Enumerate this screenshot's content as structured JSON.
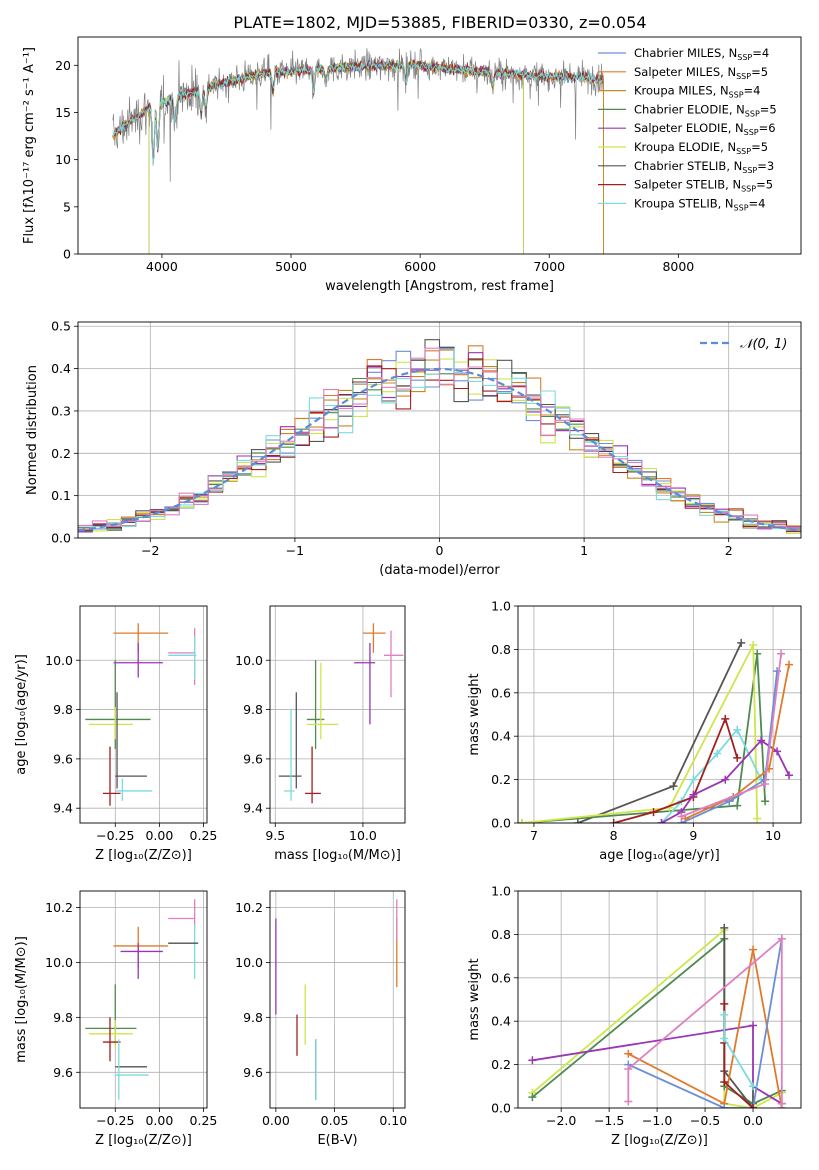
{
  "figure": {
    "title": "PLATE=1802, MJD=53885, FIBERID=0330, z=0.054"
  },
  "colors": {
    "Chabrier MILES": "#6a8fd6",
    "Salpeter MILES": "#e07a2a",
    "Kroupa MILES": "#c58a22",
    "Chabrier ELODIE": "#4f8a4f",
    "Salpeter ELODIE": "#9a35b5",
    "Kroupa ELODIE": "#cde64b",
    "Chabrier STELIB": "#555555",
    "Salpeter STELIB": "#a31f1f",
    "Kroupa STELIB": "#7adbe0",
    "Pink": "#e07fbf",
    "data": "#7f7f7f"
  },
  "chart_data": [
    {
      "id": "spectrum",
      "type": "line",
      "title": "PLATE=1802, MJD=53885, FIBERID=0330, z=0.054",
      "xlabel": "wavelength [Angstrom, rest frame]",
      "ylabel": "Flux [fλ10⁻¹⁷ erg cm⁻² s⁻¹ A⁻¹]",
      "xlim": [
        3350,
        8950
      ],
      "ylim": [
        0,
        23
      ],
      "xticks": [
        4000,
        5000,
        6000,
        7000,
        8000
      ],
      "yticks": [
        0,
        5,
        10,
        15,
        20
      ],
      "grid": false,
      "legend_position": "top-right",
      "legend": [
        {
          "label": "Chabrier MILES, N",
          "sub": "SSP",
          "suffix": "=4",
          "color": "#6a8fd6"
        },
        {
          "label": "Salpeter MILES, N",
          "sub": "SSP",
          "suffix": "=5",
          "color": "#e07a2a"
        },
        {
          "label": "Kroupa MILES, N",
          "sub": "SSP",
          "suffix": "=4",
          "color": "#c58a22"
        },
        {
          "label": "Chabrier ELODIE, N",
          "sub": "SSP",
          "suffix": "=5",
          "color": "#4f8a4f"
        },
        {
          "label": "Salpeter ELODIE, N",
          "sub": "SSP",
          "suffix": "=6",
          "color": "#9a35b5"
        },
        {
          "label": "Kroupa ELODIE, N",
          "sub": "SSP",
          "suffix": "=5",
          "color": "#cde64b"
        },
        {
          "label": "Chabrier STELIB, N",
          "sub": "SSP",
          "suffix": "=3",
          "color": "#555555"
        },
        {
          "label": "Salpeter STELIB, N",
          "sub": "SSP",
          "suffix": "=5",
          "color": "#a31f1f"
        },
        {
          "label": "Kroupa STELIB, N",
          "sub": "SSP",
          "suffix": "=4",
          "color": "#7adbe0"
        }
      ],
      "continuum": {
        "x": [
          3620,
          3700,
          3800,
          3900,
          4000,
          4200,
          4400,
          4600,
          4800,
          5000,
          5200,
          5500,
          5800,
          6000,
          6200,
          6500,
          6800,
          7000,
          7200,
          7400
        ],
        "y": [
          12.5,
          13.5,
          14.5,
          15.5,
          16.0,
          17.0,
          17.8,
          18.6,
          19.2,
          19.3,
          19.6,
          19.9,
          20.0,
          20.0,
          19.7,
          19.3,
          19.0,
          18.8,
          18.8,
          18.6
        ]
      },
      "data_range": [
        3620,
        8800
      ],
      "model_ranges": {
        "MILES": [
          3620,
          7420
        ],
        "ELODIE": [
          3900,
          6800
        ],
        "STELIB": [
          3620,
          8800
        ]
      }
    },
    {
      "id": "residuals",
      "type": "step",
      "xlabel": "(data-model)/error",
      "ylabel": "Normed distribution",
      "xlim": [
        -2.5,
        2.5
      ],
      "ylim": [
        0,
        0.51
      ],
      "xticks": [
        -2,
        -1,
        0,
        1,
        2
      ],
      "yticks": [
        0.0,
        0.1,
        0.2,
        0.3,
        0.4,
        0.5
      ],
      "grid": true,
      "legend_position": "top-right",
      "legend": [
        {
          "label": "𝒩(0, 1)",
          "color": "#5b8dd6",
          "dashed": true
        }
      ],
      "bin_width": 0.1,
      "bins_from": -2.5,
      "bins_to": 2.5
    },
    {
      "id": "age-vs-Z",
      "type": "errorbar",
      "xlabel": "Z [log₁₀(Z/Z⊙)]",
      "ylabel": "age  [log₁₀(age/yr)]",
      "xlim": [
        -0.45,
        0.27
      ],
      "ylim": [
        9.34,
        10.22
      ],
      "xticks": [
        -0.25,
        0.0,
        0.25
      ],
      "yticks": [
        9.4,
        9.6,
        9.8,
        10.0
      ],
      "xtick_labels": [
        "−0.25",
        "0.00",
        "0.25"
      ],
      "grid": true,
      "points": [
        {
          "color": "#e07a2a",
          "x": -0.12,
          "xerr": [
            0.14,
            0.17
          ],
          "y": 10.11,
          "yerr": [
            0.08,
            0.04
          ]
        },
        {
          "color": "#e07fbf",
          "x": 0.2,
          "xerr": [
            0.15,
            0.0
          ],
          "y": 10.03,
          "yerr": [
            0.13,
            0.1
          ]
        },
        {
          "color": "#7adbe0",
          "x": 0.2,
          "xerr": [
            0.15,
            0.01
          ],
          "y": 10.02,
          "yerr": [
            0.1,
            0.08
          ]
        },
        {
          "color": "#9a35b5",
          "x": -0.12,
          "xerr": [
            0.14,
            0.14
          ],
          "y": 9.99,
          "yerr": [
            0.06,
            0.08
          ]
        },
        {
          "color": "#4f8a4f",
          "x": -0.25,
          "xerr": [
            0.17,
            0.2
          ],
          "y": 9.76,
          "yerr": [
            0.12,
            0.24
          ]
        },
        {
          "color": "#cde64b",
          "x": -0.25,
          "xerr": [
            0.15,
            0.1
          ],
          "y": 9.74,
          "yerr": [
            0.06,
            0.07
          ]
        },
        {
          "color": "#555555",
          "x": -0.24,
          "xerr": [
            0.01,
            0.17
          ],
          "y": 9.53,
          "yerr": [
            0.05,
            0.34
          ]
        },
        {
          "color": "#a31f1f",
          "x": -0.28,
          "xerr": [
            0.04,
            0.06
          ],
          "y": 9.46,
          "yerr": [
            0.05,
            0.19
          ]
        },
        {
          "color": "#7adbe0",
          "x": -0.21,
          "xerr": [
            0.04,
            0.17
          ],
          "y": 9.47,
          "yerr": [
            0.04,
            0.05
          ]
        }
      ]
    },
    {
      "id": "age-vs-mass",
      "type": "errorbar",
      "xlabel": "mass [log₁₀(M/M⊙)]",
      "xlim": [
        9.47,
        10.24
      ],
      "ylim": [
        9.34,
        10.22
      ],
      "xticks": [
        9.5,
        10.0
      ],
      "yticks": [
        9.4,
        9.6,
        9.8,
        10.0
      ],
      "xtick_labels": [
        "9.5",
        "10.0"
      ],
      "grid": true,
      "points": [
        {
          "color": "#e07a2a",
          "x": 10.06,
          "xerr": [
            0.06,
            0.07
          ],
          "y": 10.11,
          "yerr": [
            0.08,
            0.04
          ]
        },
        {
          "color": "#e07fbf",
          "x": 10.16,
          "xerr": [
            0.04,
            0.07
          ],
          "y": 10.02,
          "yerr": [
            0.17,
            0.1
          ]
        },
        {
          "color": "#9a35b5",
          "x": 10.04,
          "xerr": [
            0.09,
            0.03
          ],
          "y": 9.99,
          "yerr": [
            0.25,
            0.08
          ]
        },
        {
          "color": "#4f8a4f",
          "x": 9.73,
          "xerr": [
            0.05,
            0.05
          ],
          "y": 9.76,
          "yerr": [
            0.12,
            0.24
          ]
        },
        {
          "color": "#cde64b",
          "x": 9.76,
          "xerr": [
            0.08,
            0.1
          ],
          "y": 9.74,
          "yerr": [
            0.06,
            0.25
          ]
        },
        {
          "color": "#555555",
          "x": 9.62,
          "xerr": [
            0.1,
            0.03
          ],
          "y": 9.53,
          "yerr": [
            0.05,
            0.34
          ]
        },
        {
          "color": "#7adbe0",
          "x": 9.59,
          "xerr": [
            0.04,
            0.02
          ],
          "y": 9.47,
          "yerr": [
            0.04,
            0.33
          ]
        },
        {
          "color": "#a31f1f",
          "x": 9.71,
          "xerr": [
            0.04,
            0.05
          ],
          "y": 9.46,
          "yerr": [
            0.04,
            0.19
          ]
        }
      ]
    },
    {
      "id": "weight-vs-age",
      "type": "line",
      "xlabel": "age  [log₁₀(age/yr)]",
      "ylabel": "mass weight",
      "xlim": [
        6.8,
        10.35
      ],
      "ylim": [
        0,
        1.0
      ],
      "xticks": [
        7,
        8,
        9,
        10
      ],
      "yticks": [
        0.0,
        0.2,
        0.4,
        0.6,
        0.8,
        1.0
      ],
      "grid": true,
      "series": [
        {
          "color": "#555555",
          "x": [
            7.55,
            8.75,
            9.6
          ],
          "y": [
            0.0,
            0.17,
            0.83
          ]
        },
        {
          "color": "#4f8a4f",
          "x": [
            6.85,
            9.55,
            9.8,
            9.9
          ],
          "y": [
            0.0,
            0.08,
            0.78,
            0.1
          ]
        },
        {
          "color": "#cde64b",
          "x": [
            6.85,
            8.7,
            9.75,
            9.8
          ],
          "y": [
            0.0,
            0.07,
            0.82,
            0.02
          ]
        },
        {
          "color": "#7adbe0",
          "x": [
            8.6,
            8.85,
            9.0,
            9.3,
            9.55,
            9.85
          ],
          "y": [
            0.0,
            0.1,
            0.2,
            0.32,
            0.43,
            0.2
          ]
        },
        {
          "color": "#a31f1f",
          "x": [
            8.0,
            8.5,
            9.0,
            9.4,
            9.55
          ],
          "y": [
            0.0,
            0.05,
            0.12,
            0.48,
            0.3
          ]
        },
        {
          "color": "#9a35b5",
          "x": [
            8.6,
            8.85,
            9.0,
            9.4,
            9.85,
            10.05,
            10.2
          ],
          "y": [
            0.0,
            0.05,
            0.13,
            0.2,
            0.38,
            0.33,
            0.22
          ]
        },
        {
          "color": "#e07a2a",
          "x": [
            8.9,
            9.5,
            9.95,
            10.2
          ],
          "y": [
            0.02,
            0.12,
            0.25,
            0.73
          ]
        },
        {
          "color": "#6a8fd6",
          "x": [
            8.85,
            9.45,
            9.9,
            10.05
          ],
          "y": [
            0.0,
            0.1,
            0.2,
            0.7
          ]
        },
        {
          "color": "#e07fbf",
          "x": [
            8.85,
            9.9,
            10.1
          ],
          "y": [
            0.03,
            0.18,
            0.78
          ]
        }
      ]
    },
    {
      "id": "mass-vs-Z",
      "type": "errorbar",
      "xlabel": "Z [log₁₀(Z/Z⊙)]",
      "ylabel": "mass [log₁₀(M/M⊙)]",
      "xlim": [
        -0.45,
        0.27
      ],
      "ylim": [
        9.47,
        10.26
      ],
      "xticks": [
        -0.25,
        0.0,
        0.25
      ],
      "yticks": [
        9.6,
        9.8,
        10.0,
        10.2
      ],
      "xtick_labels": [
        "−0.25",
        "0.00",
        "0.25"
      ],
      "grid": true,
      "points": [
        {
          "color": "#e07fbf",
          "x": 0.2,
          "xerr": [
            0.15,
            0.0
          ],
          "y": 10.16,
          "yerr": [
            0.04,
            0.07
          ]
        },
        {
          "color": "#7adbe0",
          "x": 0.2,
          "xerr": [
            0.15,
            0.01
          ],
          "y": 10.07,
          "yerr": [
            0.13,
            0.07
          ]
        },
        {
          "color": "#e07a2a",
          "x": -0.12,
          "xerr": [
            0.14,
            0.17
          ],
          "y": 10.06,
          "yerr": [
            0.08,
            0.07
          ]
        },
        {
          "color": "#555555",
          "x": 0.2,
          "xerr": [
            0.15,
            0.02
          ],
          "y": 10.07,
          "yerr": [
            0.0,
            0.0
          ]
        },
        {
          "color": "#9a35b5",
          "x": -0.12,
          "xerr": [
            0.1,
            0.14
          ],
          "y": 10.04,
          "yerr": [
            0.1,
            0.03
          ]
        },
        {
          "color": "#4f8a4f",
          "x": -0.25,
          "xerr": [
            0.17,
            0.12
          ],
          "y": 9.76,
          "yerr": [
            0.06,
            0.16
          ]
        },
        {
          "color": "#cde64b",
          "x": -0.25,
          "xerr": [
            0.15,
            0.1
          ],
          "y": 9.74,
          "yerr": [
            0.05,
            0.05
          ]
        },
        {
          "color": "#a31f1f",
          "x": -0.28,
          "xerr": [
            0.04,
            0.06
          ],
          "y": 9.71,
          "yerr": [
            0.07,
            0.09
          ]
        },
        {
          "color": "#555555",
          "x": -0.24,
          "xerr": [
            0.01,
            0.17
          ],
          "y": 9.62,
          "yerr": [
            0.0,
            0.0
          ]
        },
        {
          "color": "#7adbe0",
          "x": -0.23,
          "xerr": [
            0.02,
            0.17
          ],
          "y": 9.59,
          "yerr": [
            0.09,
            0.13
          ]
        }
      ]
    },
    {
      "id": "mass-vs-EBV",
      "type": "errorbar",
      "xlabel": "E(B-V)",
      "xlim": [
        -0.005,
        0.11
      ],
      "ylim": [
        9.47,
        10.26
      ],
      "xticks": [
        0.0,
        0.05,
        0.1
      ],
      "yticks": [
        9.6,
        9.8,
        10.0,
        10.2
      ],
      "xtick_labels": [
        "0.00",
        "0.05",
        "0.10"
      ],
      "grid": true,
      "points": [
        {
          "color": "#9a35b5",
          "x": 0.0,
          "y": 9.99,
          "yerr": [
            0.18,
            0.17
          ]
        },
        {
          "color": "#a31f1f",
          "x": 0.018,
          "y": 9.73,
          "yerr": [
            0.07,
            0.08
          ]
        },
        {
          "color": "#cde64b",
          "x": 0.025,
          "y": 9.8,
          "yerr": [
            0.1,
            0.12
          ]
        },
        {
          "color": "#555555",
          "x": 0.034,
          "y": 9.59,
          "yerr": [
            0.09,
            0.13
          ]
        },
        {
          "color": "#7adbe0",
          "x": 0.034,
          "y": 9.59,
          "yerr": [
            0.09,
            0.13
          ]
        },
        {
          "color": "#e07a2a",
          "x": 0.103,
          "y": 10.06,
          "yerr": [
            0.15,
            0.1
          ]
        },
        {
          "color": "#e07fbf",
          "x": 0.103,
          "y": 10.16,
          "yerr": [
            0.08,
            0.07
          ]
        }
      ]
    },
    {
      "id": "weight-vs-Z",
      "type": "line",
      "xlabel": "Z [log₁₀(Z/Z⊙)]",
      "ylabel": "mass weight",
      "xlim": [
        -2.45,
        0.5
      ],
      "ylim": [
        0,
        1.0
      ],
      "xticks": [
        -2.0,
        -1.5,
        -1.0,
        -0.5,
        0.0
      ],
      "yticks": [
        0.0,
        0.2,
        0.4,
        0.6,
        0.8,
        1.0
      ],
      "xtick_labels": [
        "−2.0",
        "−1.5",
        "−1.0",
        "−0.5",
        "0.0"
      ],
      "grid": true,
      "series": [
        {
          "color": "#cde64b",
          "x": [
            -2.3,
            -0.3,
            -0.3,
            0.0,
            0.3
          ],
          "y": [
            0.07,
            0.82,
            0.02,
            0.0,
            0.07
          ]
        },
        {
          "color": "#4f8a4f",
          "x": [
            -2.3,
            -0.3,
            -0.3,
            0.0,
            0.3
          ],
          "y": [
            0.05,
            0.78,
            0.1,
            0.02,
            0.08
          ]
        },
        {
          "color": "#9a35b5",
          "x": [
            -2.3,
            0.0,
            0.0,
            0.3
          ],
          "y": [
            0.22,
            0.38,
            0.1,
            0.02
          ]
        },
        {
          "color": "#555555",
          "x": [
            -0.3,
            -0.3,
            0.0,
            0.0
          ],
          "y": [
            0.83,
            0.17,
            0.0,
            0.1
          ]
        },
        {
          "color": "#e07a2a",
          "x": [
            -1.3,
            -0.3,
            0.0,
            0.3
          ],
          "y": [
            0.25,
            0.02,
            0.73,
            0.0
          ]
        },
        {
          "color": "#6a8fd6",
          "x": [
            -1.3,
            -0.3,
            0.0,
            0.3
          ],
          "y": [
            0.2,
            0.0,
            0.0,
            0.78
          ]
        },
        {
          "color": "#e07fbf",
          "x": [
            -1.3,
            -1.3,
            0.3,
            0.3
          ],
          "y": [
            0.03,
            0.18,
            0.78,
            0.02
          ]
        },
        {
          "color": "#a31f1f",
          "x": [
            -0.3,
            -0.3,
            -0.3,
            0.0
          ],
          "y": [
            0.48,
            0.3,
            0.12,
            0.0
          ]
        },
        {
          "color": "#7adbe0",
          "x": [
            -0.3,
            -0.3,
            0.0
          ],
          "y": [
            0.43,
            0.32,
            0.1
          ]
        }
      ]
    }
  ]
}
